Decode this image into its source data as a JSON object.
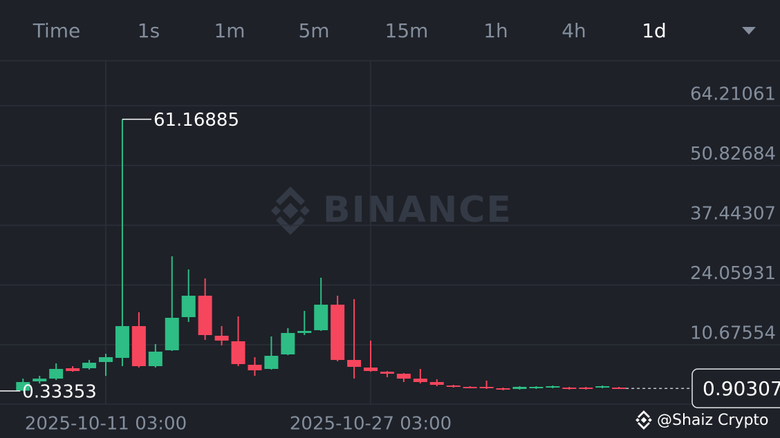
{
  "tabs": [
    "Time",
    "1s",
    "1m",
    "5m",
    "15m",
    "1h",
    "4h",
    "1d"
  ],
  "selected_tab": "1d",
  "watermark": "BINANCE",
  "credit": "@Shaiz Crypto",
  "chart_data": {
    "type": "candlestick",
    "categories": [
      null,
      null,
      null,
      null,
      null,
      "2025-10-11 03:00",
      null,
      null,
      null,
      null,
      null,
      null,
      null,
      null,
      null,
      null,
      null,
      null,
      null,
      null,
      null,
      "2025-10-27 03:00",
      null,
      null,
      null,
      null,
      null,
      null,
      null,
      null,
      null,
      null,
      null,
      null,
      null,
      null,
      null
    ],
    "open": [
      0.4,
      2.47,
      3.09,
      5.41,
      5.41,
      6.81,
      7.73,
      14.85,
      5.88,
      9.44,
      16.86,
      21.66,
      12.69,
      11.45,
      6.19,
      5.26,
      8.51,
      13.31,
      13.93,
      19.65,
      7.27,
      5.57,
      4.64,
      4.18,
      3.09,
      2.32,
      1.55,
      1.24,
      1.24,
      0.93,
      0.77,
      0.93,
      1.08,
      1.08,
      1.08,
      1.08,
      1.08
    ],
    "high": [
      3.09,
      3.71,
      6.5,
      5.88,
      7.27,
      8.66,
      61.16885,
      17.95,
      10.83,
      30.48,
      27.54,
      25.53,
      14.85,
      17.02,
      7.89,
      12.53,
      14.39,
      18.26,
      25.68,
      21.66,
      20.89,
      11.6,
      4.79,
      4.33,
      5.26,
      2.94,
      1.7,
      1.39,
      2.63,
      1.08,
      1.39,
      1.39,
      1.55,
      1.24,
      1.24,
      1.55,
      1.24
    ],
    "low": [
      0.33353,
      2.01,
      2.78,
      4.64,
      5.1,
      3.71,
      5.88,
      5.57,
      5.57,
      9.28,
      15.78,
      11.76,
      10.52,
      5.88,
      3.71,
      5.1,
      8.35,
      12.84,
      13.77,
      6.96,
      3.09,
      4.64,
      3.4,
      2.32,
      2.01,
      1.39,
      1.08,
      0.93,
      0.77,
      0.46,
      0.62,
      0.77,
      0.93,
      0.62,
      0.62,
      0.93,
      0.77
    ],
    "close": [
      2.32,
      3.09,
      5.26,
      4.79,
      6.65,
      7.89,
      14.85,
      5.88,
      9.13,
      16.71,
      21.66,
      12.84,
      11.6,
      6.34,
      4.95,
      8.2,
      13.31,
      13.77,
      19.65,
      7.27,
      5.72,
      4.79,
      4.18,
      3.09,
      2.32,
      1.7,
      1.24,
      1.08,
      0.93,
      0.62,
      1.24,
      1.24,
      1.39,
      0.77,
      0.77,
      1.39,
      0.90307
    ],
    "up_color": "#2ebd85",
    "down_color": "#f6465d",
    "ylim": [
      -2.63,
      74.27
    ],
    "yticks": [
      10.67554,
      24.05931,
      37.44307,
      50.82684,
      64.21061
    ],
    "grid": true
  }
}
